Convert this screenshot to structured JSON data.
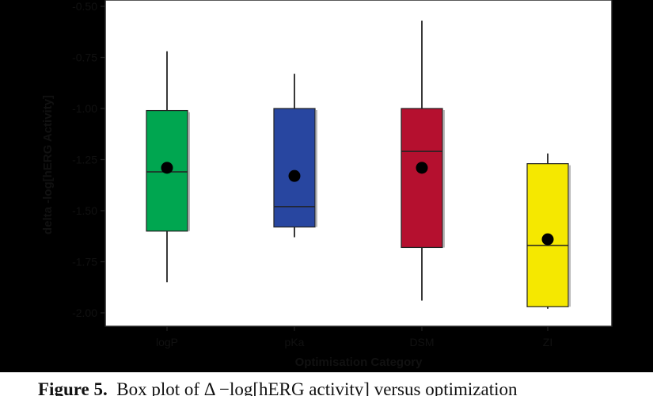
{
  "chart_data": {
    "type": "box",
    "title": "",
    "xlabel": "Optimisation Category",
    "ylabel": "delta -log[hERG Activity]",
    "ylim": [
      -2.05,
      -0.5
    ],
    "yticks": [
      -0.5,
      -0.75,
      -1.0,
      -1.25,
      -1.5,
      -1.75,
      -2.0
    ],
    "ytick_labels": [
      "-0.50",
      "-0.75",
      "-1.00",
      "-1.25",
      "-1.50",
      "-1.75",
      "-2.00"
    ],
    "grid": false,
    "categories": [
      "logP",
      "pKa",
      "DSM",
      "ZI"
    ],
    "boxes": [
      {
        "category": "logP",
        "whisker_low": -1.85,
        "q1": -1.6,
        "median": -1.31,
        "q3": -1.01,
        "whisker_high": -0.72,
        "mean": -1.29,
        "color": "#00a650"
      },
      {
        "category": "pKa",
        "whisker_low": -1.63,
        "q1": -1.58,
        "median": -1.48,
        "q3": -1.0,
        "whisker_high": -0.83,
        "mean": -1.33,
        "color": "#2846a0"
      },
      {
        "category": "DSM",
        "whisker_low": -1.94,
        "q1": -1.68,
        "median": -1.21,
        "q3": -1.0,
        "whisker_high": -0.57,
        "mean": -1.29,
        "color": "#b5102f"
      },
      {
        "category": "ZI",
        "whisker_low": -1.98,
        "q1": -1.97,
        "median": -1.67,
        "q3": -1.27,
        "whisker_high": -1.22,
        "mean": -1.64,
        "color": "#f5e800"
      }
    ]
  },
  "caption": {
    "label": "Figure 5.",
    "text": "Box plot of Δ −log[hERG activity] versus optimization"
  }
}
